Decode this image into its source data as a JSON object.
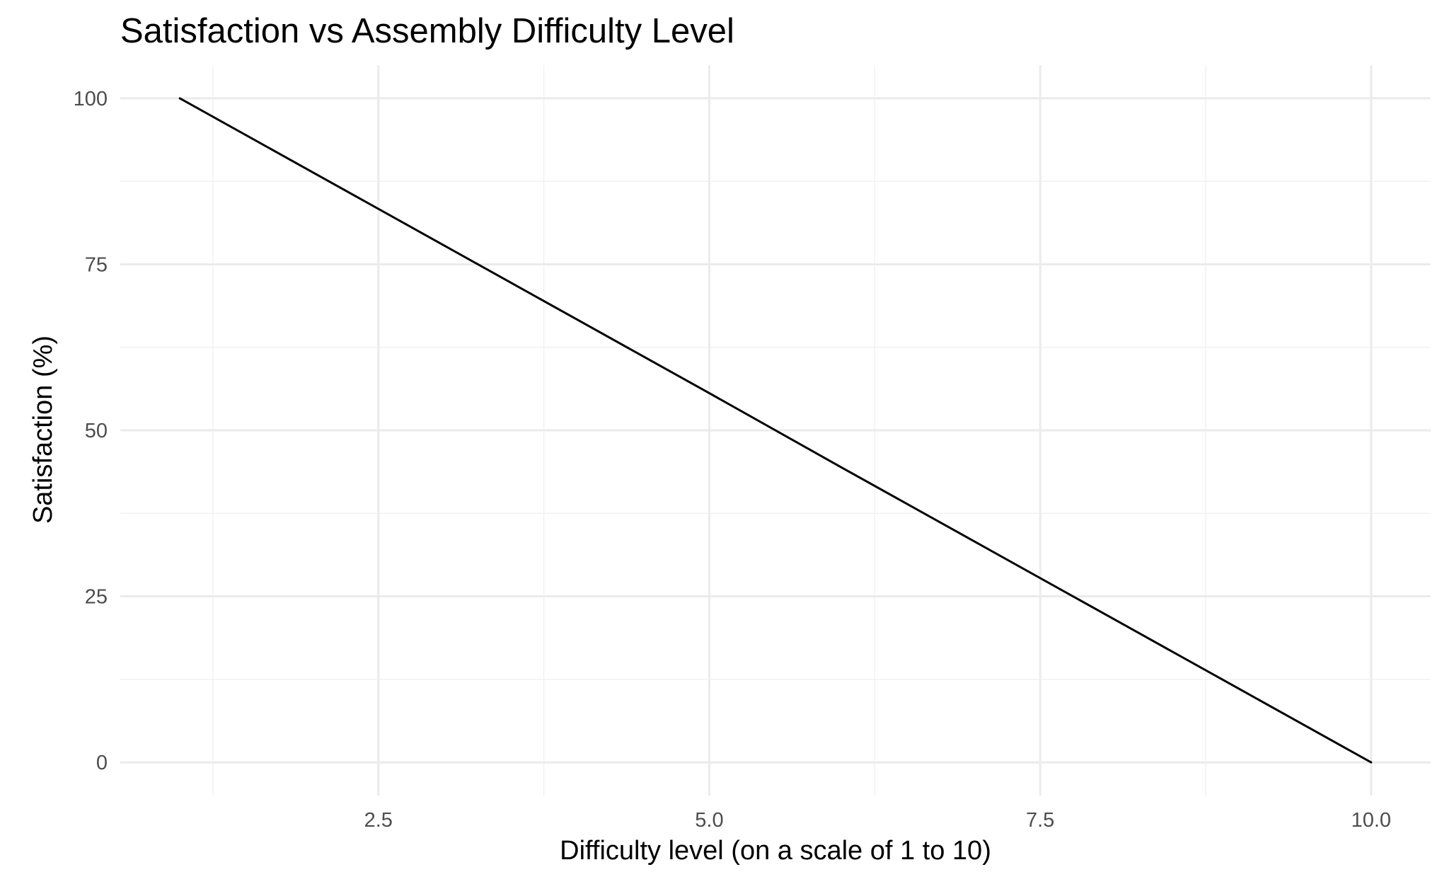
{
  "chart_data": {
    "type": "line",
    "title": "Satisfaction vs Assembly Difficulty Level",
    "xlabel": "Difficulty level (on a scale of 1 to 10)",
    "ylabel": "Satisfaction (%)",
    "xlim": [
      0.55,
      10.45
    ],
    "ylim": [
      -5,
      105
    ],
    "x_ticks": [
      {
        "value": 2.5,
        "label": "2.5"
      },
      {
        "value": 5.0,
        "label": "5.0"
      },
      {
        "value": 7.5,
        "label": "7.5"
      },
      {
        "value": 10.0,
        "label": "10.0"
      }
    ],
    "x_minor_ticks": [
      1.25,
      3.75,
      6.25,
      8.75
    ],
    "y_ticks": [
      {
        "value": 0,
        "label": "0"
      },
      {
        "value": 25,
        "label": "25"
      },
      {
        "value": 50,
        "label": "50"
      },
      {
        "value": 75,
        "label": "75"
      },
      {
        "value": 100,
        "label": "100"
      }
    ],
    "y_minor_ticks": [
      12.5,
      37.5,
      62.5,
      87.5
    ],
    "grid": true,
    "legend": "none",
    "series": [
      {
        "color": "#000000",
        "x": [
          1,
          2,
          3,
          4,
          5,
          6,
          7,
          8,
          9,
          10
        ],
        "y": [
          100,
          88.9,
          77.8,
          66.7,
          55.6,
          44.4,
          33.3,
          22.2,
          11.1,
          0
        ]
      }
    ]
  }
}
